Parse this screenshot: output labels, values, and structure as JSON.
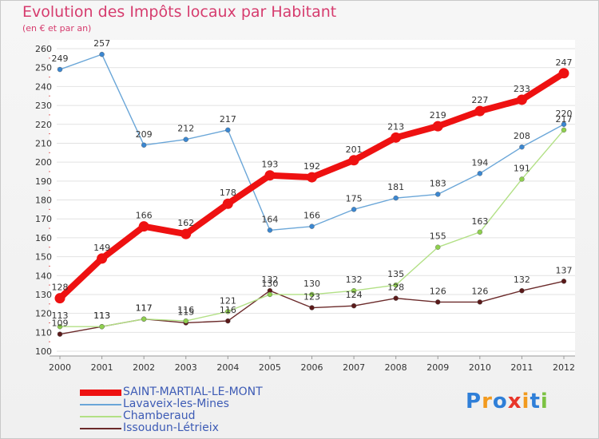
{
  "title": "Evolution des Impôts locaux par Habitant",
  "subtitle": "(en € et par an)",
  "logo": {
    "letters": [
      {
        "ch": "P",
        "color": "#2f7fd8"
      },
      {
        "ch": "r",
        "color": "#f29a1e"
      },
      {
        "ch": "o",
        "color": "#2f7fd8"
      },
      {
        "ch": "x",
        "color": "#e8362a"
      },
      {
        "ch": "i",
        "color": "#f29a1e"
      },
      {
        "ch": "t",
        "color": "#2f7fd8"
      },
      {
        "ch": "i",
        "color": "#7cc242"
      }
    ]
  },
  "chart_data": {
    "type": "line",
    "x": [
      "2000",
      "2001",
      "2002",
      "2003",
      "2004",
      "2005",
      "2006",
      "2007",
      "2008",
      "2009",
      "2010",
      "2011",
      "2012"
    ],
    "ylim": [
      100,
      260
    ],
    "yticks": [
      100,
      110,
      120,
      130,
      140,
      150,
      160,
      170,
      180,
      190,
      200,
      210,
      220,
      230,
      240,
      250,
      260
    ],
    "grid": "horizontal",
    "legend_position": "bottom-left",
    "series": [
      {
        "name": "SAINT-MARTIAL-LE-MONT",
        "color": "#ee1111",
        "values": [
          128,
          149,
          166,
          162,
          178,
          193,
          192,
          201,
          213,
          219,
          227,
          233,
          247
        ]
      },
      {
        "name": "Lavaveix-les-Mines",
        "color": "#6aa6d8",
        "marker_color": "#3b87d1",
        "values": [
          249,
          257,
          209,
          212,
          217,
          164,
          166,
          175,
          181,
          183,
          194,
          208,
          220
        ]
      },
      {
        "name": "Chamberaud",
        "color": "#b2e085",
        "marker_color": "#8fd04e",
        "values": [
          113,
          113,
          117,
          116,
          121,
          130,
          130,
          132,
          135,
          155,
          163,
          191,
          217
        ]
      },
      {
        "name": "Issoudun-Létrieix",
        "color": "#6b2a2a",
        "marker_color": "#5a1a1a",
        "values": [
          109,
          113,
          117,
          115,
          116,
          132,
          123,
          124,
          128,
          126,
          126,
          132,
          137
        ]
      }
    ]
  }
}
